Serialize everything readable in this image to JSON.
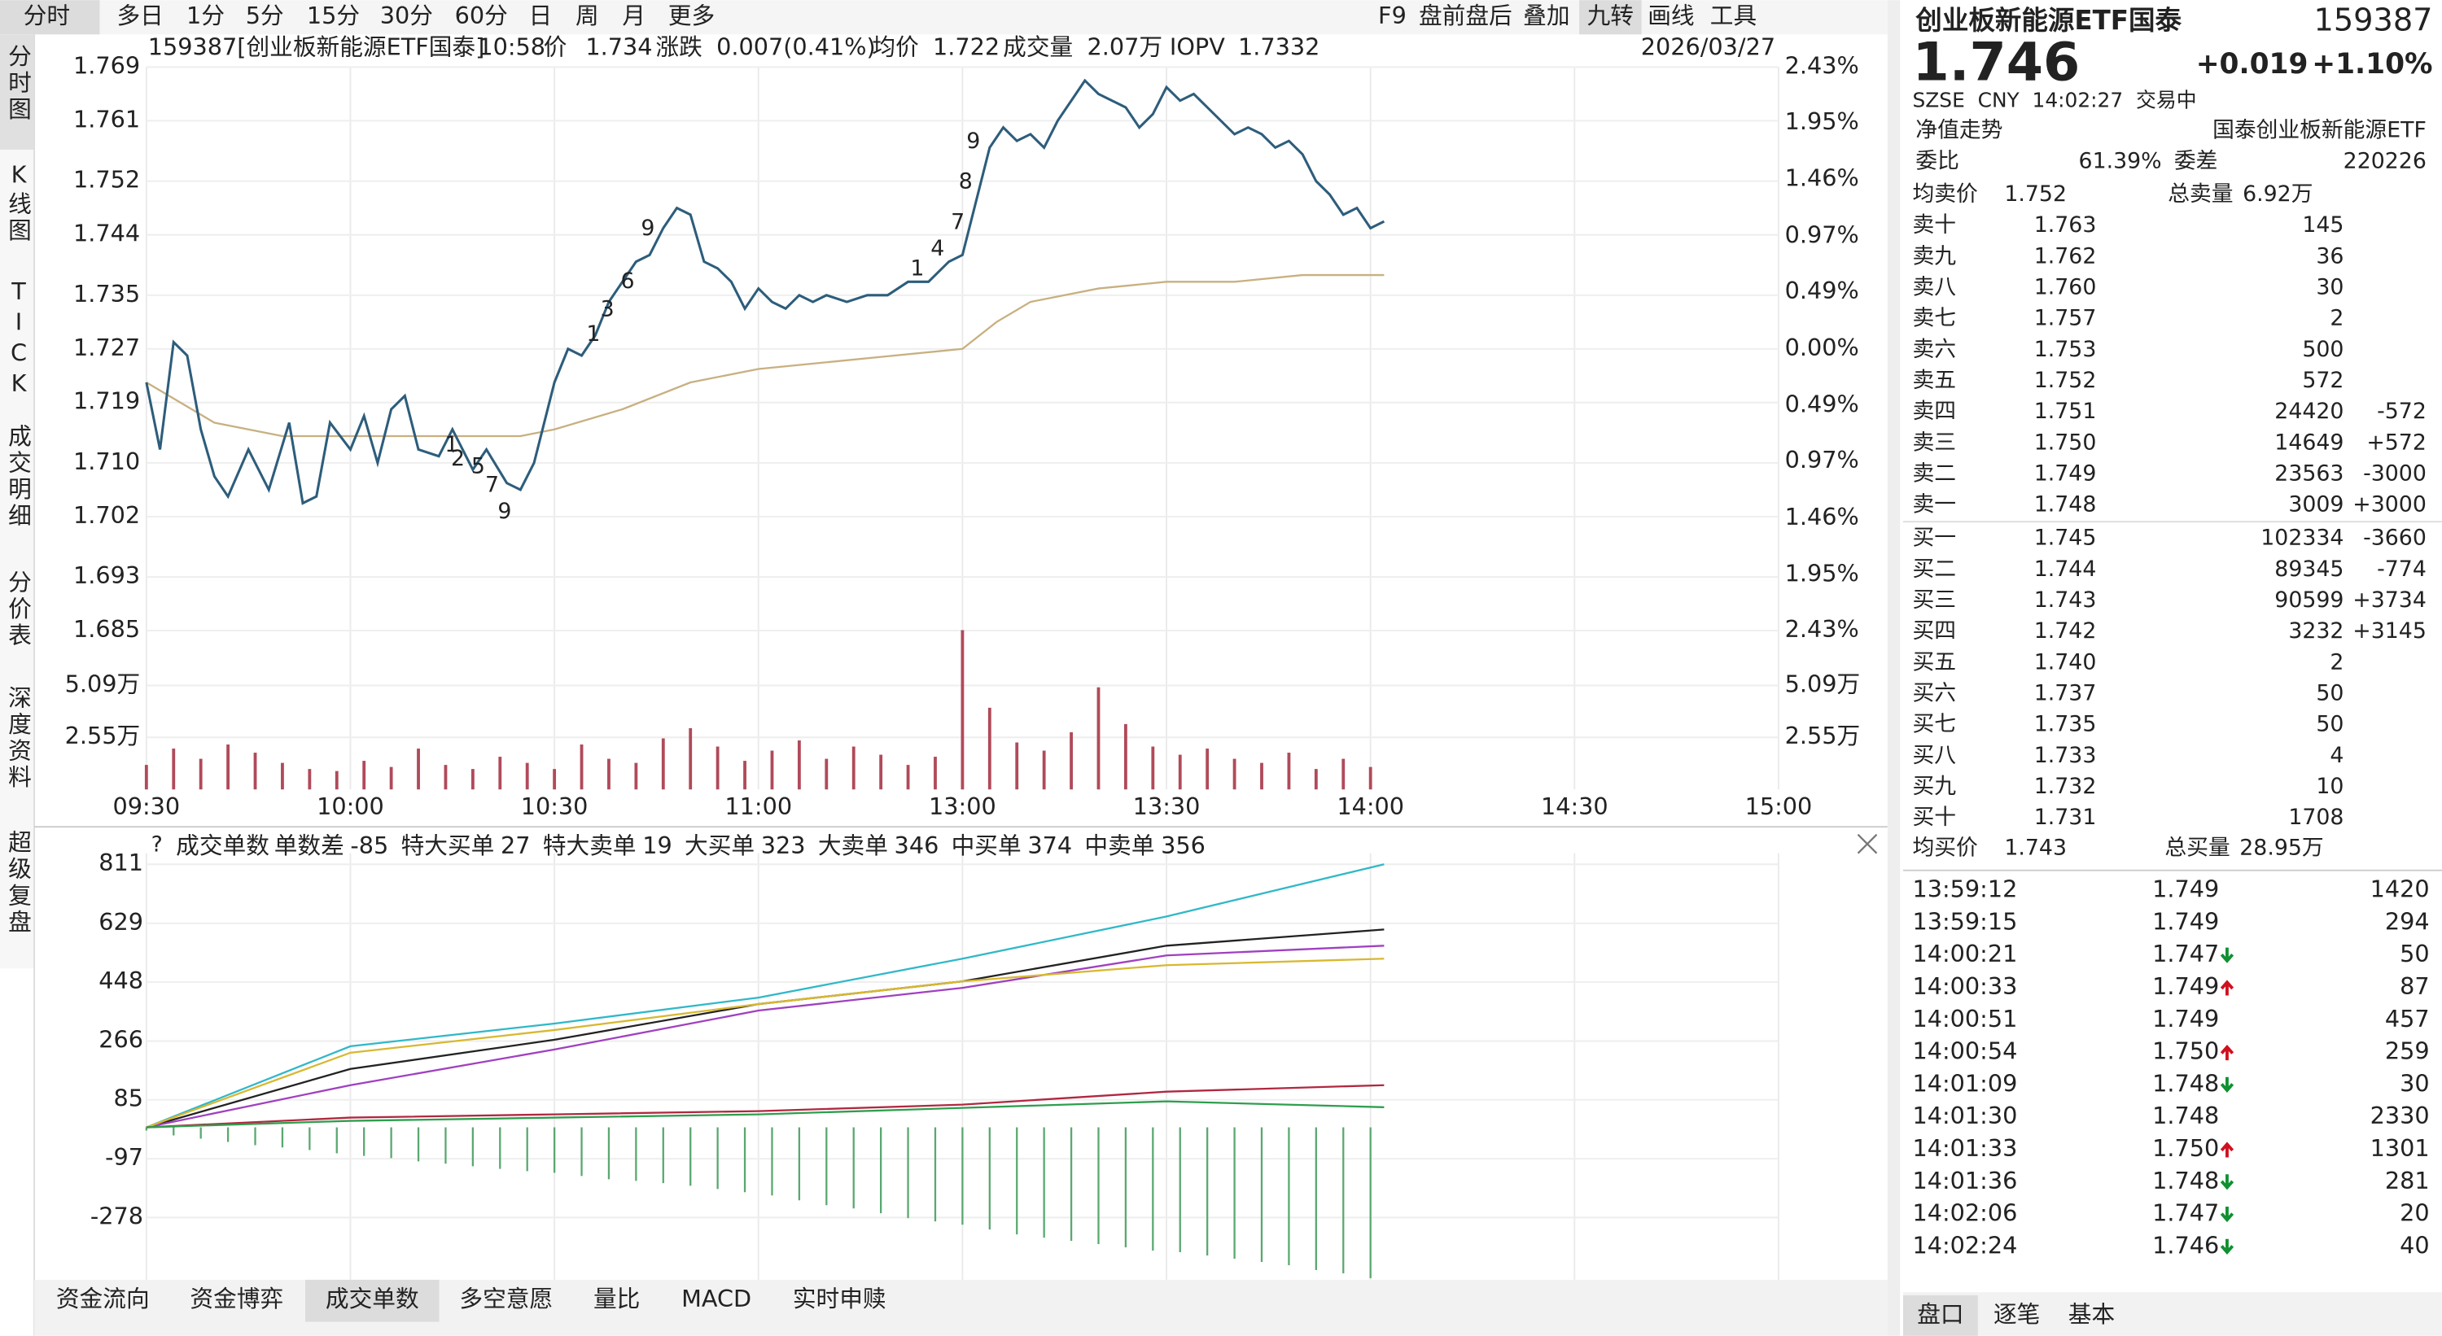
{
  "toolbar": {
    "tabs": [
      "分时",
      "多日",
      "1分",
      "5分",
      "15分",
      "30分",
      "60分",
      "日",
      "周",
      "月",
      "更多"
    ],
    "right": [
      "F9",
      "盘前盘后",
      "叠加",
      "九转",
      "画线",
      "工具"
    ]
  },
  "sidebar": [
    "分时图",
    "K线图",
    "TICK",
    "成交明细",
    "分价表",
    "深度资料",
    "超级复盘"
  ],
  "info": {
    "name": "159387[创业板新能源ETF国泰]",
    "time": "10:58",
    "price_label": "价",
    "price": "1.734",
    "change_label": "涨跌",
    "change": "0.007(0.41%)",
    "avg_label": "均价",
    "avg": "1.722",
    "volume_label": "成交量",
    "volume": "2.07万",
    "iopv_label": "IOPV",
    "iopv": "1.7332",
    "date": "2026/03/27"
  },
  "nine_turn": [
    "1",
    "2",
    "5",
    "7",
    "9",
    "1",
    "3",
    "6",
    "9",
    "1",
    "4",
    "7",
    "8",
    "9"
  ],
  "chart_data": [
    {
      "type": "line",
      "xlim": [
        0,
        240
      ],
      "xticks": [
        {
          "value": 0,
          "label": "09:30"
        },
        {
          "value": 30,
          "label": "10:00"
        },
        {
          "value": 60,
          "label": "10:30"
        },
        {
          "value": 90,
          "label": "11:00"
        },
        {
          "value": 120,
          "label": "13:00"
        },
        {
          "value": 150,
          "label": "13:30"
        },
        {
          "value": 180,
          "label": "14:00"
        },
        {
          "value": 210,
          "label": "14:30"
        },
        {
          "value": 240,
          "label": "15:00"
        }
      ],
      "ylim": [
        1.685,
        1.769
      ],
      "yticks": [
        1.769,
        1.761,
        1.752,
        1.744,
        1.735,
        1.727,
        1.719,
        {
          "value": 1.71,
          "label": "1.710"
        },
        1.702,
        1.693,
        1.685
      ],
      "y2lim": [
        -2.43,
        2.43
      ],
      "y2ticks": [
        {
          "value": 2.43,
          "label": "2.43%"
        },
        {
          "value": 1.95,
          "label": "1.95%"
        },
        {
          "value": 1.46,
          "label": "1.46%"
        },
        {
          "value": 0.97,
          "label": "0.97%"
        },
        {
          "value": 0.49,
          "label": "0.49%"
        },
        {
          "value": 0,
          "label": "0.00%"
        },
        {
          "value": -0.49,
          "label": "0.49%"
        },
        {
          "value": -0.97,
          "label": "0.97%"
        },
        {
          "value": -1.46,
          "label": "1.46%"
        },
        {
          "value": -1.95,
          "label": "1.95%"
        },
        {
          "value": -2.43,
          "label": "2.43%"
        }
      ],
      "grid": true,
      "series": [
        {
          "color": "#2d5d7b",
          "x": [
            0,
            2,
            4,
            6,
            8,
            10,
            12,
            15,
            18,
            21,
            23,
            25,
            27,
            30,
            32,
            34,
            36,
            38,
            40,
            43,
            45,
            48,
            50,
            53,
            55,
            57,
            60,
            62,
            64,
            66,
            68,
            70,
            72,
            74,
            76,
            78,
            80,
            82,
            84,
            86,
            88,
            90,
            92,
            94,
            96,
            98,
            100,
            103,
            106,
            109,
            112,
            115,
            118,
            120,
            122,
            124,
            126,
            128,
            130,
            132,
            134,
            136,
            138,
            140,
            142,
            144,
            146,
            148,
            150,
            152,
            154,
            156,
            158,
            160,
            162,
            164,
            166,
            168,
            170,
            172,
            174,
            176,
            178,
            180,
            182
          ],
          "values": [
            1.722,
            1.712,
            1.728,
            1.726,
            1.715,
            1.708,
            1.705,
            1.712,
            1.706,
            1.716,
            1.704,
            1.705,
            1.716,
            1.712,
            1.717,
            1.71,
            1.718,
            1.72,
            1.712,
            1.711,
            1.715,
            1.709,
            1.712,
            1.707,
            1.706,
            1.71,
            1.722,
            1.727,
            1.726,
            1.729,
            1.734,
            1.737,
            1.74,
            1.741,
            1.745,
            1.748,
            1.747,
            1.74,
            1.739,
            1.737,
            1.733,
            1.736,
            1.734,
            1.733,
            1.735,
            1.734,
            1.735,
            1.734,
            1.735,
            1.735,
            1.737,
            1.737,
            1.74,
            1.741,
            1.749,
            1.757,
            1.76,
            1.758,
            1.759,
            1.757,
            1.761,
            1.764,
            1.767,
            1.765,
            1.764,
            1.763,
            1.76,
            1.762,
            1.766,
            1.764,
            1.765,
            1.763,
            1.761,
            1.759,
            1.76,
            1.759,
            1.757,
            1.758,
            1.756,
            1.752,
            1.75,
            1.747,
            1.748,
            1.745,
            1.746
          ]
        },
        {
          "color": "#c8b080",
          "x": [
            0,
            10,
            20,
            40,
            55,
            60,
            70,
            80,
            90,
            100,
            110,
            120,
            125,
            130,
            140,
            150,
            160,
            170,
            182
          ],
          "values": [
            1.722,
            1.716,
            1.714,
            1.714,
            1.714,
            1.715,
            1.718,
            1.722,
            1.724,
            1.725,
            1.726,
            1.727,
            1.731,
            1.734,
            1.736,
            1.737,
            1.737,
            1.738,
            1.738
          ]
        }
      ]
    },
    {
      "type": "bar",
      "xlim": [
        0,
        240
      ],
      "ylim": [
        0,
        7.7
      ],
      "yticks": [
        {
          "value": 5.09,
          "label": "5.09万"
        },
        {
          "value": 2.55,
          "label": "2.55万"
        }
      ],
      "color": "#b04a5a",
      "x": [
        0,
        4,
        8,
        12,
        16,
        20,
        24,
        28,
        32,
        36,
        40,
        44,
        48,
        52,
        56,
        60,
        64,
        68,
        72,
        76,
        80,
        84,
        88,
        92,
        96,
        100,
        104,
        108,
        112,
        116,
        120,
        124,
        128,
        132,
        136,
        140,
        144,
        148,
        152,
        156,
        160,
        164,
        168,
        172,
        176,
        180
      ],
      "values": [
        1.2,
        2.0,
        1.5,
        2.2,
        1.8,
        1.3,
        1.0,
        0.9,
        1.4,
        1.1,
        2.0,
        1.2,
        1.0,
        1.6,
        1.3,
        1.0,
        2.2,
        1.5,
        1.3,
        2.5,
        3.0,
        2.1,
        1.4,
        1.9,
        2.4,
        1.5,
        2.1,
        1.7,
        1.2,
        1.6,
        7.8,
        4.0,
        2.3,
        1.9,
        2.8,
        5.0,
        3.2,
        2.1,
        1.7,
        2.0,
        1.5,
        1.3,
        1.8,
        1.0,
        1.5,
        1.1
      ]
    },
    {
      "type": "line",
      "title": "成交单数",
      "xlim": [
        0,
        240
      ],
      "ylim": [
        -470,
        845
      ],
      "yticks": [
        811,
        629,
        448,
        266,
        85,
        -97,
        -278
      ],
      "legend": [
        {
          "name": "单数差",
          "value": -85,
          "color": "#e09a20"
        },
        {
          "name": "特大买单",
          "value": 27,
          "color": "#2e9e4e"
        },
        {
          "name": "特大卖单",
          "value": 19,
          "color": "#b02840"
        },
        {
          "name": "大买单",
          "value": 323,
          "color": "#a040c0"
        },
        {
          "name": "大卖单",
          "value": 346,
          "color": "#222222"
        },
        {
          "name": "中买单",
          "value": 374,
          "color": "#30b8c8"
        },
        {
          "name": "中卖单",
          "value": 356,
          "color": "#d8b830"
        }
      ],
      "bars": {
        "color": "#5aa870",
        "x": [
          0,
          4,
          8,
          12,
          16,
          20,
          24,
          28,
          32,
          36,
          40,
          44,
          48,
          52,
          56,
          60,
          64,
          68,
          72,
          76,
          80,
          84,
          88,
          92,
          96,
          100,
          104,
          108,
          112,
          116,
          120,
          124,
          128,
          132,
          136,
          140,
          144,
          148,
          152,
          156,
          160,
          164,
          168,
          172,
          176,
          180
        ],
        "values": [
          -10,
          -25,
          -35,
          -45,
          -55,
          -62,
          -70,
          -80,
          -88,
          -95,
          -105,
          -112,
          -120,
          -128,
          -135,
          -140,
          -150,
          -160,
          -165,
          -172,
          -180,
          -190,
          -200,
          -210,
          -225,
          -240,
          -250,
          -265,
          -280,
          -290,
          -300,
          -315,
          -330,
          -340,
          -350,
          -360,
          -370,
          -380,
          -385,
          -395,
          -405,
          -415,
          -425,
          -440,
          -450,
          -465
        ]
      },
      "series": [
        {
          "color": "#30b8c8",
          "x": [
            0,
            30,
            60,
            90,
            120,
            150,
            182
          ],
          "values": [
            0,
            250,
            320,
            400,
            520,
            650,
            811
          ]
        },
        {
          "color": "#222222",
          "x": [
            0,
            30,
            60,
            90,
            120,
            150,
            182
          ],
          "values": [
            0,
            180,
            270,
            380,
            450,
            560,
            610
          ]
        },
        {
          "color": "#a040c0",
          "x": [
            0,
            30,
            60,
            90,
            120,
            150,
            182
          ],
          "values": [
            0,
            130,
            240,
            360,
            430,
            530,
            560
          ]
        },
        {
          "color": "#d8b830",
          "x": [
            0,
            30,
            60,
            90,
            120,
            150,
            182
          ],
          "values": [
            0,
            230,
            300,
            380,
            450,
            500,
            520
          ]
        },
        {
          "color": "#b02840",
          "x": [
            0,
            30,
            60,
            90,
            120,
            150,
            182
          ],
          "values": [
            0,
            30,
            40,
            50,
            70,
            110,
            130
          ]
        },
        {
          "color": "#2e9e4e",
          "x": [
            0,
            30,
            60,
            90,
            120,
            150,
            182
          ],
          "values": [
            0,
            20,
            30,
            40,
            60,
            80,
            62
          ]
        }
      ]
    }
  ],
  "bottom_tabs": [
    "资金流向",
    "资金博弈",
    "成交单数",
    "多空意愿",
    "量比",
    "MACD",
    "实时申赎"
  ],
  "panel": {
    "title": "创业板新能源ETF国泰",
    "code": "159387",
    "price": "1.746",
    "change": "+0.019",
    "pct": "+1.10%",
    "market": "SZSE  CNY  14:02:27  交易中",
    "nav_label": "净值走势",
    "fund_name": "国泰创业板新能源ETF",
    "ratio_label": "委比",
    "ratio": "61.39%",
    "diff_label": "委差",
    "diff": "220226",
    "ask_avg_label": "均卖价",
    "ask_avg": "1.752",
    "ask_total_label": "总卖量",
    "ask_total": "6.92万",
    "asks": [
      [
        "卖十",
        "1.763",
        145,
        null
      ],
      [
        "卖九",
        "1.762",
        36,
        null
      ],
      [
        "卖八",
        "1.760",
        30,
        null
      ],
      [
        "卖七",
        "1.757",
        2,
        null
      ],
      [
        "卖六",
        "1.753",
        500,
        null
      ],
      [
        "卖五",
        "1.752",
        572,
        null
      ],
      [
        "卖四",
        "1.751",
        24420,
        "-572"
      ],
      [
        "卖三",
        "1.750",
        14649,
        "+572"
      ],
      [
        "卖二",
        "1.749",
        23563,
        "-3000"
      ],
      [
        "卖一",
        "1.748",
        3009,
        "+3000"
      ]
    ],
    "bids": [
      [
        "买一",
        "1.745",
        102334,
        "-3660"
      ],
      [
        "买二",
        "1.744",
        89345,
        "-774"
      ],
      [
        "买三",
        "1.743",
        90599,
        "+3734"
      ],
      [
        "买四",
        "1.742",
        3232,
        "+3145"
      ],
      [
        "买五",
        "1.740",
        2,
        null
      ],
      [
        "买六",
        "1.737",
        50,
        null
      ],
      [
        "买七",
        "1.735",
        50,
        null
      ],
      [
        "买八",
        "1.733",
        4,
        null
      ],
      [
        "买九",
        "1.732",
        10,
        null
      ],
      [
        "买十",
        "1.731",
        1708,
        null
      ]
    ],
    "bid_avg_label": "均买价",
    "bid_avg": "1.743",
    "bid_total_label": "总买量",
    "bid_total": "28.95万",
    "trades": [
      {
        "time": "13:59:12",
        "price": "1.749",
        "vol": 1420,
        "dir": null,
        "color": "#d0101e"
      },
      {
        "time": "13:59:15",
        "price": "1.749",
        "vol": 294,
        "dir": null,
        "color": "#d0101e"
      },
      {
        "time": "14:00:21",
        "price": "1.747",
        "vol": 50,
        "dir": "down",
        "color": "#109030"
      },
      {
        "time": "14:00:33",
        "price": "1.749",
        "vol": 87,
        "dir": "up",
        "color": "#d0101e"
      },
      {
        "time": "14:00:51",
        "price": "1.749",
        "vol": 457,
        "dir": null,
        "color": "#d0101e"
      },
      {
        "time": "14:00:54",
        "price": "1.750",
        "vol": 259,
        "dir": "up",
        "color": "#d0101e"
      },
      {
        "time": "14:01:09",
        "price": "1.748",
        "vol": 30,
        "dir": "down",
        "color": "#109030"
      },
      {
        "time": "14:01:30",
        "price": "1.748",
        "vol": 2330,
        "dir": null,
        "color": "#109030"
      },
      {
        "time": "14:01:33",
        "price": "1.750",
        "vol": 1301,
        "dir": "up",
        "color": "#d0101e"
      },
      {
        "time": "14:01:36",
        "price": "1.748",
        "vol": 281,
        "dir": "down",
        "color": "#109030"
      },
      {
        "time": "14:02:06",
        "price": "1.747",
        "vol": 20,
        "dir": "down",
        "color": "#109030"
      },
      {
        "time": "14:02:24",
        "price": "1.746",
        "vol": 40,
        "dir": "down",
        "color": "#109030"
      }
    ],
    "tabs": [
      "盘口",
      "逐笔",
      "基本"
    ]
  }
}
